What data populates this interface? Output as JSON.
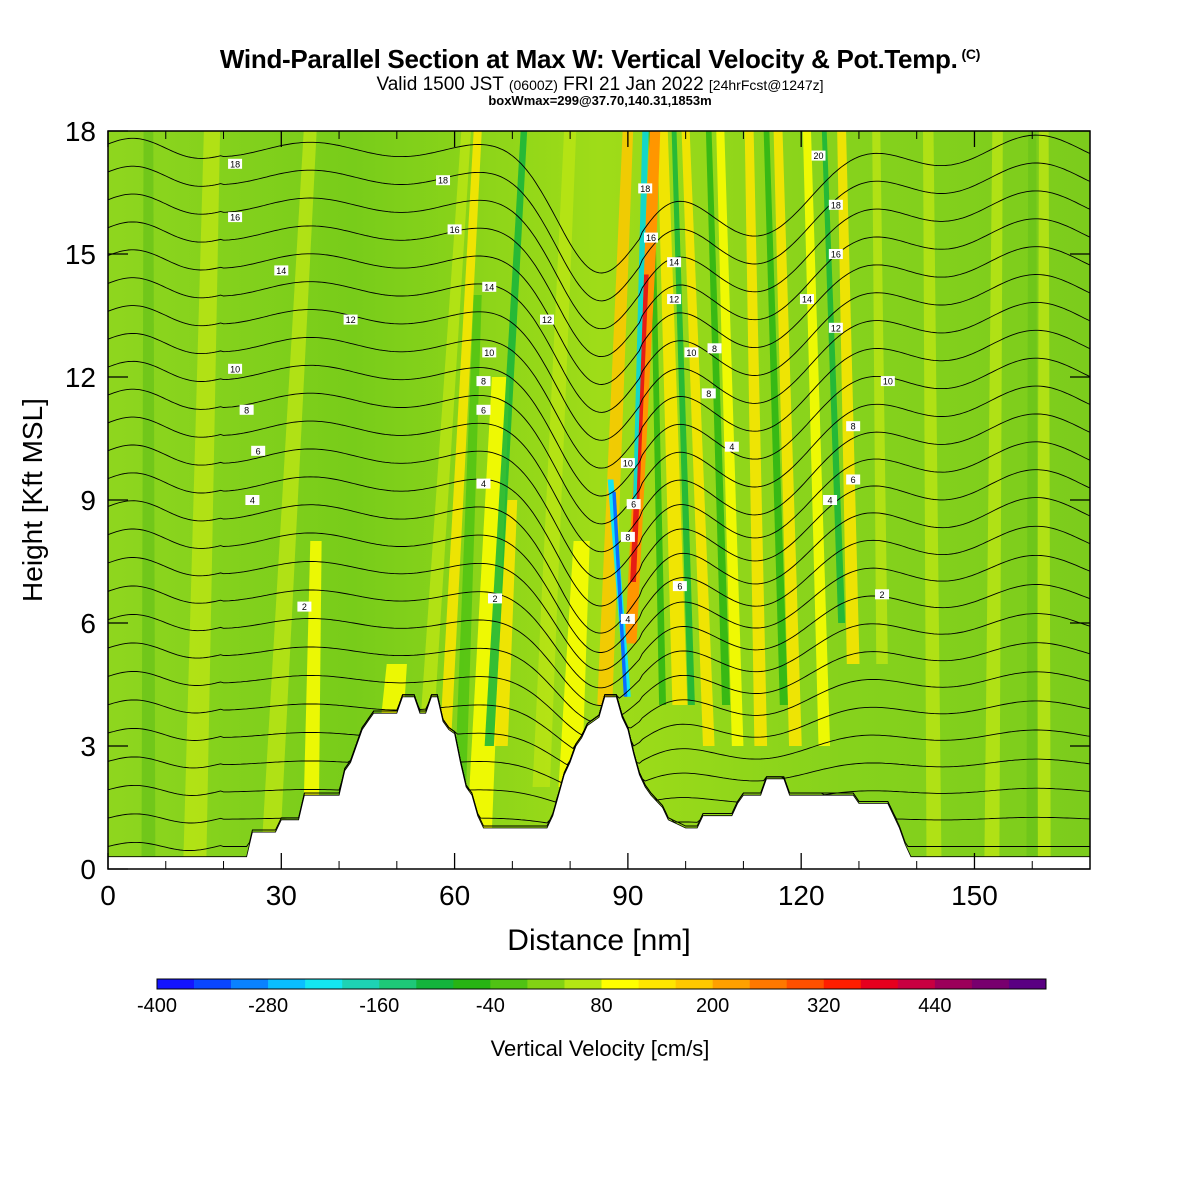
{
  "header": {
    "title": "Wind-Parallel Section at Max W: Vertical Velocity & Pot.Temp.",
    "copyright": "(C)",
    "valid_prefix": "Valid 1500 JST",
    "valid_utc": "(0600Z)",
    "valid_date": "FRI 21 Jan 2022",
    "forecast_tag": "[24hrFcst@1247z]",
    "boxmax": "boxWmax=299@37.70,140.31,1853m"
  },
  "colorbar": {
    "label": "Vertical Velocity [cm/s]",
    "tick_labels": [
      "-400",
      "-280",
      "-160",
      "-40",
      "80",
      "200",
      "320",
      "440"
    ],
    "colors": [
      "#1414ff",
      "#0a46ff",
      "#0a82ff",
      "#0abeff",
      "#14e6f0",
      "#1ed2b4",
      "#1ec878",
      "#14b43c",
      "#28b414",
      "#50c314",
      "#82d214",
      "#b4e614",
      "#ffff00",
      "#ffe600",
      "#ffc800",
      "#ffa000",
      "#ff7800",
      "#ff5000",
      "#ff1e00",
      "#e6001e",
      "#c80041",
      "#9b005a",
      "#78006e",
      "#5a0082"
    ]
  },
  "chart_data": {
    "type": "heatmap",
    "title": "Wind-Parallel Section at Max W: Vertical Velocity & Pot.Temp.",
    "xlabel": "Distance [nm]",
    "ylabel": "Height [Kft MSL]",
    "xlim": [
      0,
      170
    ],
    "ylim": [
      0,
      18
    ],
    "x_ticks": [
      0,
      30,
      60,
      90,
      120,
      150
    ],
    "y_ticks": [
      0,
      3,
      6,
      9,
      12,
      15,
      18
    ],
    "shading": "vertical velocity [cm/s]",
    "contours": "potential temperature",
    "max_updraft_x_nm": 91,
    "max_downdraft_x_nm": 89,
    "terrain": [
      [
        0,
        0.3
      ],
      [
        24,
        0.3
      ],
      [
        25,
        0.9
      ],
      [
        29,
        0.9
      ],
      [
        30,
        1.2
      ],
      [
        33,
        1.2
      ],
      [
        34,
        1.8
      ],
      [
        40,
        1.8
      ],
      [
        41,
        2.4
      ],
      [
        42,
        2.6
      ],
      [
        43,
        3.0
      ],
      [
        44,
        3.4
      ],
      [
        45,
        3.6
      ],
      [
        46,
        3.8
      ],
      [
        50,
        3.8
      ],
      [
        51,
        4.2
      ],
      [
        53,
        4.2
      ],
      [
        54,
        3.8
      ],
      [
        55,
        3.8
      ],
      [
        56,
        4.2
      ],
      [
        57,
        4.2
      ],
      [
        58,
        3.6
      ],
      [
        59,
        3.4
      ],
      [
        60,
        3.3
      ],
      [
        61,
        2.6
      ],
      [
        62,
        2.0
      ],
      [
        63,
        1.8
      ],
      [
        64,
        1.3
      ],
      [
        65,
        1.0
      ],
      [
        76,
        1.0
      ],
      [
        77,
        1.3
      ],
      [
        78,
        1.8
      ],
      [
        79,
        2.3
      ],
      [
        80,
        2.6
      ],
      [
        81,
        3.0
      ],
      [
        82,
        3.2
      ],
      [
        83,
        3.5
      ],
      [
        85,
        3.7
      ],
      [
        86,
        4.2
      ],
      [
        88,
        4.2
      ],
      [
        89,
        3.7
      ],
      [
        90,
        3.4
      ],
      [
        91,
        2.8
      ],
      [
        92,
        2.3
      ],
      [
        93,
        2.0
      ],
      [
        94,
        1.8
      ],
      [
        96,
        1.5
      ],
      [
        97,
        1.2
      ],
      [
        100,
        1.0
      ],
      [
        102,
        1.0
      ],
      [
        103,
        1.3
      ],
      [
        108,
        1.3
      ],
      [
        109,
        1.6
      ],
      [
        110,
        1.8
      ],
      [
        113,
        1.8
      ],
      [
        114,
        2.2
      ],
      [
        117,
        2.2
      ],
      [
        118,
        1.8
      ],
      [
        129,
        1.8
      ],
      [
        130,
        1.6
      ],
      [
        135,
        1.6
      ],
      [
        136,
        1.3
      ],
      [
        137,
        1.0
      ],
      [
        138,
        0.6
      ],
      [
        139,
        0.3
      ],
      [
        170,
        0.3
      ]
    ],
    "contour_labels": [
      {
        "x": 22,
        "y": 17.2,
        "text": "18"
      },
      {
        "x": 22,
        "y": 15.9,
        "text": "16"
      },
      {
        "x": 30,
        "y": 14.6,
        "text": "14"
      },
      {
        "x": 42,
        "y": 13.4,
        "text": "12"
      },
      {
        "x": 22,
        "y": 12.2,
        "text": "10"
      },
      {
        "x": 24,
        "y": 11.2,
        "text": "8"
      },
      {
        "x": 26,
        "y": 10.2,
        "text": "6"
      },
      {
        "x": 25,
        "y": 9.0,
        "text": "4"
      },
      {
        "x": 34,
        "y": 6.4,
        "text": "2"
      },
      {
        "x": 58,
        "y": 16.8,
        "text": "18"
      },
      {
        "x": 60,
        "y": 15.6,
        "text": "16"
      },
      {
        "x": 66,
        "y": 14.2,
        "text": "14"
      },
      {
        "x": 76,
        "y": 13.4,
        "text": "12"
      },
      {
        "x": 66,
        "y": 12.6,
        "text": "10"
      },
      {
        "x": 65,
        "y": 11.9,
        "text": "8"
      },
      {
        "x": 65,
        "y": 11.2,
        "text": "6"
      },
      {
        "x": 65,
        "y": 9.4,
        "text": "4"
      },
      {
        "x": 67,
        "y": 6.6,
        "text": "2"
      },
      {
        "x": 93,
        "y": 16.6,
        "text": "18"
      },
      {
        "x": 94,
        "y": 15.4,
        "text": "16"
      },
      {
        "x": 98,
        "y": 14.8,
        "text": "14"
      },
      {
        "x": 98,
        "y": 13.9,
        "text": "12"
      },
      {
        "x": 101,
        "y": 12.6,
        "text": "10"
      },
      {
        "x": 105,
        "y": 12.7,
        "text": "8"
      },
      {
        "x": 104,
        "y": 11.6,
        "text": "8"
      },
      {
        "x": 90,
        "y": 9.9,
        "text": "10"
      },
      {
        "x": 91,
        "y": 8.9,
        "text": "6"
      },
      {
        "x": 90,
        "y": 8.1,
        "text": "8"
      },
      {
        "x": 90,
        "y": 6.1,
        "text": "4"
      },
      {
        "x": 99,
        "y": 6.9,
        "text": "6"
      },
      {
        "x": 108,
        "y": 10.3,
        "text": "4"
      },
      {
        "x": 123,
        "y": 17.4,
        "text": "20"
      },
      {
        "x": 126,
        "y": 16.2,
        "text": "18"
      },
      {
        "x": 126,
        "y": 15.0,
        "text": "16"
      },
      {
        "x": 121,
        "y": 13.9,
        "text": "14"
      },
      {
        "x": 126,
        "y": 13.2,
        "text": "12"
      },
      {
        "x": 135,
        "y": 11.9,
        "text": "10"
      },
      {
        "x": 129,
        "y": 10.8,
        "text": "8"
      },
      {
        "x": 129,
        "y": 9.5,
        "text": "6"
      },
      {
        "x": 125,
        "y": 9.0,
        "text": "4"
      },
      {
        "x": 134,
        "y": 6.7,
        "text": "2"
      }
    ]
  }
}
